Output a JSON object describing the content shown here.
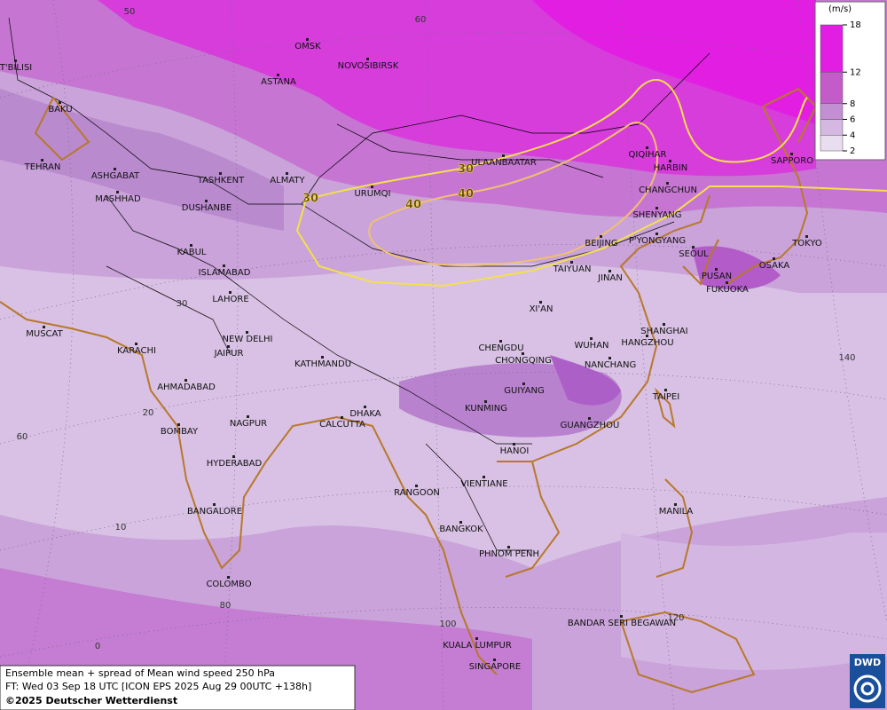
{
  "map": {
    "cities": [
      "T'BILISI",
      "BAKU",
      "TEHRAN",
      "ASHGABAT",
      "MASHHAD",
      "TASHKENT",
      "ALMATY",
      "DUSHANBE",
      "OMSK",
      "NOVOSIBIRSK",
      "ASTANA",
      "URUMQI",
      "ULAANBAATAR",
      "QIQIHAR",
      "HARBIN",
      "CHANGCHUN",
      "SHENYANG",
      "SAPPORO",
      "BEIJING",
      "P'YONGYANG",
      "SEOUL",
      "TOKYO",
      "OSAKA",
      "PUSAN",
      "FUKUOKA",
      "TAIYUAN",
      "JINAN",
      "KABUL",
      "ISLAMABAD",
      "LAHORE",
      "XI'AN",
      "MUSCAT",
      "KARACHI",
      "NEW DELHI",
      "JAIPUR",
      "KATHMANDU",
      "CHENGDU",
      "CHONGQING",
      "WUHAN",
      "SHANGHAI",
      "HANGZHOU",
      "NANCHANG",
      "AHMADABAD",
      "GUIYANG",
      "TAIPEI",
      "KUNMING",
      "DHAKA",
      "CALCUTTA",
      "GUANGZHOU",
      "NAGPUR",
      "BOMBAY",
      "HYDERABAD",
      "HANOI",
      "RANGOON",
      "VIENTIANE",
      "BANGALORE",
      "MANILA",
      "BANGKOK",
      "PHNOM PENH",
      "COLOMBO",
      "BANDAR SERI BEGAWAN",
      "KUALA LUMPUR",
      "SINGAPORE"
    ],
    "graticule_labels": [
      50,
      60,
      30,
      20,
      60,
      10,
      80,
      0,
      100,
      120,
      140
    ],
    "contour_labels": [
      30,
      30,
      40,
      40
    ]
  },
  "legend": {
    "unit": "(m/s)",
    "lim": [
      2,
      18
    ],
    "ticks": [
      2,
      4,
      6,
      8,
      12,
      18
    ],
    "colors": [
      "#e9ddf0",
      "#d4b8e2",
      "#c38fd3",
      "#c35cc9",
      "#e21ee2"
    ]
  },
  "footer": {
    "line1": "Ensemble mean + spread of Mean wind speed 250 hPa",
    "line2": "FT: Wed 03 Sep 18 UTC [ICON EPS 2025 Aug 29 00UTC +138h]",
    "line3": "©2025 Deutscher Wetterdienst"
  },
  "logo": "DWD"
}
